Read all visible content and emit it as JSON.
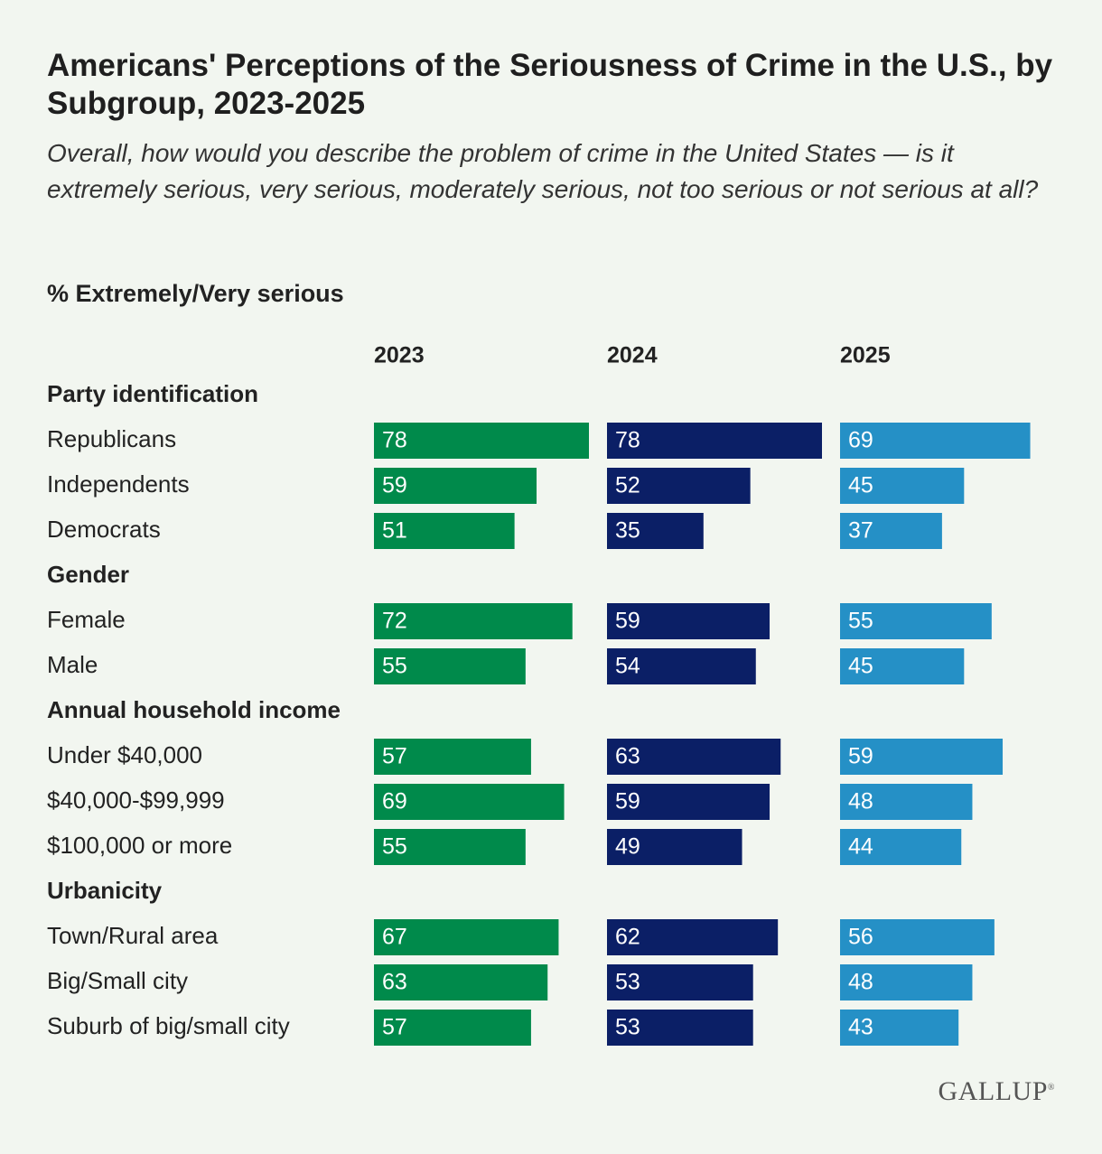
{
  "header": {
    "title": "Americans' Perceptions of the Seriousness of Crime in the U.S., by Subgroup, 2023-2025",
    "subtitle": "Overall, how would you describe the problem of crime in the United States — is it extremely serious, very serious, moderately serious, not too serious or not serious at all?",
    "measure_label": "% Extremely/Very serious"
  },
  "logo": {
    "text": "GALLUP",
    "mark": "®"
  },
  "colors": {
    "2023": "#008a4b",
    "2024": "#0b1f66",
    "2025": "#2590c6",
    "bar_text": "#ffffff",
    "text": "#222222"
  },
  "chart_data": {
    "type": "bar",
    "orientation": "horizontal",
    "series": [
      {
        "name": "2023",
        "values": [
          78,
          59,
          51,
          72,
          55,
          57,
          69,
          55,
          67,
          63,
          57
        ]
      },
      {
        "name": "2024",
        "values": [
          78,
          52,
          35,
          59,
          54,
          63,
          59,
          49,
          62,
          53,
          53
        ]
      },
      {
        "name": "2025",
        "values": [
          69,
          45,
          37,
          55,
          45,
          59,
          48,
          44,
          56,
          48,
          43
        ]
      }
    ],
    "groups": [
      {
        "name": "Party identification",
        "categories": [
          "Republicans",
          "Independents",
          "Democrats"
        ]
      },
      {
        "name": "Gender",
        "categories": [
          "Female",
          "Male"
        ]
      },
      {
        "name": "Annual household income",
        "categories": [
          "Under $40,000",
          "$40,000-$99,999",
          "$100,000 or more"
        ]
      },
      {
        "name": "Urbanicity",
        "categories": [
          "Town/Rural area",
          "Big/Small city",
          "Suburb of big/small city"
        ]
      }
    ],
    "xlim": [
      0,
      78
    ],
    "data_labels": true
  }
}
